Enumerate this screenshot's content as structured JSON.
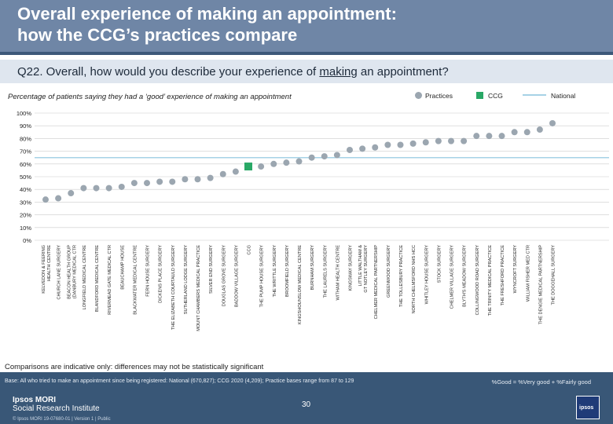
{
  "header": {
    "title_line1": "Overall experience of making an appointment:",
    "title_line2": "how the CCG’s practices compare"
  },
  "question": {
    "prefix": "Q22. Overall, how would you describe your experience of ",
    "underlined": "making",
    "suffix": " an appointment?"
  },
  "subtitle": "Percentage of patients saying they had  a ‘good’ experience of making an appointment",
  "legend": {
    "practices": "Practices",
    "ccg": "CCG",
    "national": "National"
  },
  "colors": {
    "practice": "#9ba6b0",
    "ccg": "#29a866",
    "national": "#a6d2e6",
    "grid": "#cccccc",
    "header": "#6f86a6",
    "footer": "#395777"
  },
  "chart_data": {
    "type": "scatter",
    "ylim": [
      0,
      100
    ],
    "y_ticks": [
      "100%",
      "90%",
      "80%",
      "70%",
      "60%",
      "50%",
      "40%",
      "30%",
      "20%",
      "10%",
      "0%"
    ],
    "national_value": 65,
    "categories": [
      "KELVEDON & FEERING HEALTH CENTRE",
      "CHURCH LANE SURGERY",
      "BEACON HEALTH GROUP (DANBURY MEDICAL CTR",
      "LONGFIELD MEDICAL CENTRE",
      "BLANDFORD MEDICAL CENTRE",
      "RIVERMEAD GATE MEDICAL CTR",
      "BEAUCHAMP HOUSE",
      "BLACKWATER MEDICAL CENTRE",
      "FERN HOUSE SURGERY",
      "DICKENS PLACE SURGERY",
      "THE ELIZABETH COURTAULD SURGERY",
      "SUTHERLAND LODGE SURGERY",
      "MOUNT CHAMBERS MEDICAL PRACTICE",
      "SILVER END SURGERY",
      "DOUGLAS GROVE SURGERY",
      "BADDOW VILLAGE SURGERY",
      "CCG",
      "THE PUMP HOUSE SURGERY",
      "THE WRITTLE SURGERY",
      "BROOMFIELD SURGERY",
      "KINGSHOUNSLOW MEDICAL CENTRE",
      "BURNHAM SURGERY",
      "THE LAURELS SURGERY",
      "WITHAM HEALTH CENTRE",
      "KINGSWAY SURGERY",
      "LITTLE WALTHAM & GT NOTLEY SURGERY",
      "CHELMER MEDICAL PARTNERSHIP",
      "GREENWOOD SURGERY",
      "THE TOLLESBURY PRACTICE",
      "NORTH CHELMSFORD NHS HCC",
      "WHITLEY HOUSE SURGERY",
      "STOCK SURGERY",
      "CHELMER VILLAGE SURGERY",
      "BLYTH'S MEADOW SURGERY",
      "COLLINGWOOD ROAD SURGERY",
      "THE TRINITY MEDICAL PRACTICE",
      "THE FRESHFORD PRACTICE",
      "WYNCROFT SURGERY",
      "WILLIAM FISHER MED CTR",
      "THE DENGIE MEDICAL PARTNERSHIP",
      "THE DOGGEHALL SURGERY"
    ],
    "values": [
      32,
      33,
      37,
      41,
      41,
      41,
      42,
      45,
      45,
      46,
      46,
      48,
      48,
      49,
      52,
      54,
      58,
      58,
      60,
      61,
      62,
      65,
      66,
      67,
      71,
      72,
      73,
      75,
      75,
      76,
      77,
      78,
      78,
      78,
      82,
      82,
      82,
      85,
      85,
      87,
      92
    ],
    "ccg_index": 16
  },
  "footnote": "Comparisons are indicative only: differences may not be statistically significant",
  "footer": {
    "base": "Base: All who tried to make an appointment since being registered: National (670,827); CCG 2020 (4,209); Practice bases range from 87 to 129",
    "formula": "%Good = %Very good + %Fairly good",
    "org_line1": "Ipsos MORI",
    "org_line2": "Social Research Institute",
    "page": "30",
    "job": "© Ipsos MORI      19-07680-01 | Version 1 | Public",
    "logo": "ipsos"
  }
}
